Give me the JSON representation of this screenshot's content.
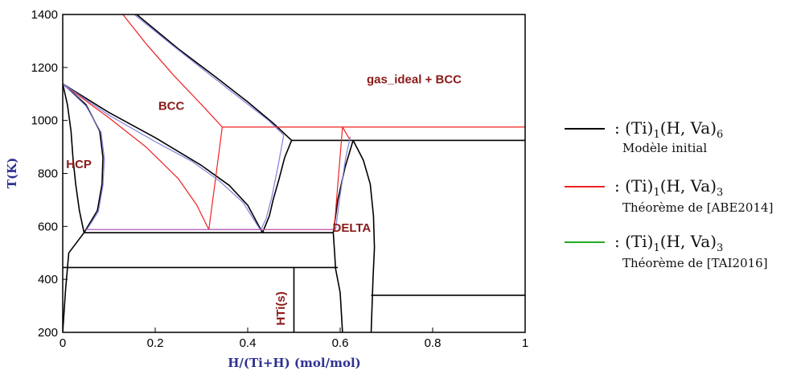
{
  "chart_data": {
    "type": "line",
    "title": "",
    "xlabel": "H/(Ti+H) (mol/mol)",
    "ylabel": "T(K)",
    "xlim": [
      0,
      1
    ],
    "ylim": [
      200,
      1400
    ],
    "x_ticks": [
      "0",
      "0.2",
      "0.4",
      "0.6",
      "0.8",
      "1"
    ],
    "y_ticks": [
      "200",
      "400",
      "600",
      "800",
      "1000",
      "1200",
      "1400"
    ],
    "grid": false,
    "regions": [
      {
        "label": "gas_ideal + BCC",
        "x": 0.76,
        "y": 1140
      },
      {
        "label": "BCC",
        "x": 0.235,
        "y": 1040
      },
      {
        "label": "HCP",
        "x": 0.035,
        "y": 820
      },
      {
        "label": "DELTA",
        "x": 0.625,
        "y": 580
      },
      {
        "label": "HTi(s)",
        "x": 0.48,
        "y": 290,
        "rotated": true
      }
    ],
    "series": [
      {
        "color": "#000000",
        "segments": [
          [
            [
              0.16,
              1400
            ],
            [
              0.25,
              1270
            ],
            [
              0.33,
              1165
            ],
            [
              0.4,
              1070
            ],
            [
              0.455,
              990
            ],
            [
              0.495,
              925
            ]
          ],
          [
            [
              0.495,
              925
            ],
            [
              1.0,
              925
            ]
          ],
          [
            [
              0.495,
              925
            ],
            [
              0.48,
              860
            ],
            [
              0.468,
              780
            ],
            [
              0.455,
              700
            ],
            [
              0.447,
              640
            ],
            [
              0.432,
              576
            ]
          ],
          [
            [
              0.0,
              1138
            ],
            [
              0.1,
              1030
            ],
            [
              0.2,
              935
            ],
            [
              0.3,
              830
            ],
            [
              0.36,
              755
            ],
            [
              0.4,
              680
            ],
            [
              0.432,
              576
            ]
          ],
          [
            [
              0.0,
              1138
            ],
            [
              0.05,
              1060
            ],
            [
              0.08,
              960
            ],
            [
              0.087,
              860
            ],
            [
              0.085,
              760
            ],
            [
              0.075,
              660
            ],
            [
              0.046,
              576
            ]
          ],
          [
            [
              0.0,
              1138
            ],
            [
              0.01,
              1060
            ],
            [
              0.018,
              960
            ],
            [
              0.022,
              860
            ],
            [
              0.028,
              760
            ],
            [
              0.036,
              660
            ],
            [
              0.046,
              576
            ]
          ],
          [
            [
              0.046,
              576
            ],
            [
              0.585,
              576
            ]
          ],
          [
            [
              0.585,
              576
            ],
            [
              0.595,
              700
            ],
            [
              0.61,
              820
            ],
            [
              0.628,
              925
            ]
          ],
          [
            [
              0.628,
              925
            ],
            [
              0.65,
              850
            ],
            [
              0.665,
              760
            ],
            [
              0.672,
              640
            ],
            [
              0.674,
              520
            ],
            [
              0.671,
              400
            ],
            [
              0.667,
              200
            ]
          ],
          [
            [
              0.0,
              445
            ],
            [
              0.595,
              445
            ]
          ],
          [
            [
              0.5,
              445
            ],
            [
              0.5,
              200
            ]
          ],
          [
            [
              0.585,
              576
            ],
            [
              0.588,
              500
            ],
            [
              0.59,
              440
            ],
            [
              0.6,
              350
            ],
            [
              0.605,
              200
            ]
          ],
          [
            [
              0.667,
              340
            ],
            [
              1.0,
              340
            ]
          ],
          [
            [
              0.0,
              200
            ],
            [
              0.006,
              360
            ],
            [
              0.013,
              500
            ],
            [
              0.046,
              576
            ]
          ]
        ]
      },
      {
        "color": "#ee2222",
        "segments": [
          [
            [
              0.13,
              1400
            ],
            [
              0.18,
              1290
            ],
            [
              0.24,
              1170
            ],
            [
              0.3,
              1060
            ],
            [
              0.345,
              975
            ]
          ],
          [
            [
              0.345,
              975
            ],
            [
              1.0,
              975
            ]
          ],
          [
            [
              0.345,
              975
            ],
            [
              0.316,
              588
            ]
          ],
          [
            [
              0.0,
              1138
            ],
            [
              0.1,
              1010
            ],
            [
              0.18,
              900
            ],
            [
              0.25,
              780
            ],
            [
              0.29,
              680
            ],
            [
              0.316,
              588
            ]
          ],
          [
            [
              0.316,
              588
            ],
            [
              0.587,
              588
            ]
          ],
          [
            [
              0.587,
              588
            ],
            [
              0.595,
              760
            ],
            [
              0.605,
              975
            ]
          ],
          [
            [
              0.605,
              975
            ],
            [
              0.62,
              930
            ]
          ]
        ]
      },
      {
        "color": "#8080dd",
        "segments": [
          [
            [
              0.155,
              1400
            ],
            [
              0.24,
              1280
            ],
            [
              0.32,
              1170
            ],
            [
              0.39,
              1075
            ],
            [
              0.445,
              1000
            ],
            [
              0.478,
              945
            ]
          ],
          [
            [
              0.478,
              945
            ],
            [
              0.466,
              830
            ],
            [
              0.452,
              710
            ],
            [
              0.44,
              630
            ],
            [
              0.428,
              585
            ]
          ],
          [
            [
              0.428,
              585
            ],
            [
              0.39,
              690
            ],
            [
              0.34,
              770
            ],
            [
              0.28,
              845
            ],
            [
              0.2,
              920
            ],
            [
              0.1,
              1020
            ],
            [
              0.0,
              1138
            ]
          ],
          [
            [
              0.0,
              1138
            ],
            [
              0.05,
              1055
            ],
            [
              0.083,
              955
            ],
            [
              0.09,
              855
            ],
            [
              0.087,
              755
            ],
            [
              0.077,
              655
            ],
            [
              0.052,
              588
            ]
          ],
          [
            [
              0.052,
              588
            ],
            [
              0.428,
              588
            ]
          ],
          [
            [
              0.59,
              588
            ],
            [
              0.6,
              720
            ],
            [
              0.612,
              860
            ],
            [
              0.622,
              938
            ]
          ]
        ]
      },
      {
        "color": "#c060c0",
        "segments": [
          [
            [
              0.05,
              588
            ],
            [
              0.587,
              588
            ]
          ]
        ]
      }
    ]
  },
  "legend": {
    "entries": [
      {
        "color": "#000000",
        "formula_text": ":  (Ti)",
        "formula_sub1": "1",
        "formula_mid": "(H, Va)",
        "formula_sub2": "6",
        "description": "Modèle initial"
      },
      {
        "color": "#ee2222",
        "formula_text": ":  (Ti)",
        "formula_sub1": "1",
        "formula_mid": "(H, Va)",
        "formula_sub2": "3",
        "description": "Théorème de [ABE2014]"
      },
      {
        "color": "#22aa22",
        "formula_text": ":  (Ti)",
        "formula_sub1": "1",
        "formula_mid": "(H, Va)",
        "formula_sub2": "3",
        "description": "Théorème de [TAI2016]"
      }
    ]
  }
}
